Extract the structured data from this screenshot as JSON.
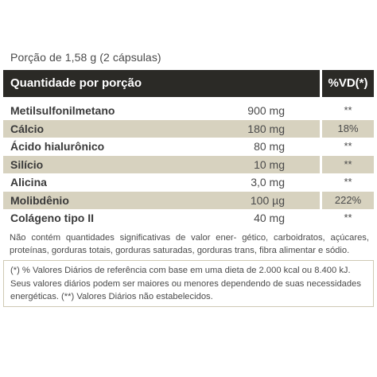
{
  "portion": "Porção de 1,58 g (2 cápsulas)",
  "header": {
    "left": "Quantidade por porção",
    "right": "%VD(*)"
  },
  "rows": [
    {
      "name": "Metilsulfonilmetano",
      "amount": "900 mg",
      "vd": "**",
      "shaded": false
    },
    {
      "name": "Cálcio",
      "amount": "180 mg",
      "vd": "18%",
      "shaded": true
    },
    {
      "name": "Ácido hialurônico",
      "amount": "80 mg",
      "vd": "**",
      "shaded": false
    },
    {
      "name": "Silício",
      "amount": "10 mg",
      "vd": "**",
      "shaded": true
    },
    {
      "name": "Alicina",
      "amount": "3,0 mg",
      "vd": "**",
      "shaded": false
    },
    {
      "name": "Molibdênio",
      "amount": "100 µg",
      "vd": "222%",
      "shaded": true
    },
    {
      "name": "Colágeno tipo II",
      "amount": "40 mg",
      "vd": "**",
      "shaded": false
    }
  ],
  "notes": {
    "not_significant": "Não contém quantidades significativas de valor ener- gético, carboidratos, açúcares, proteínas, gorduras totais, gorduras saturadas, gorduras trans, fibra alimentar e sódio.",
    "reference": "(*) % Valores Diários de referência com base em uma dieta de 2.000 kcal ou 8.400 kJ. Seus valores diários podem ser maiores ou menores dependendo de suas necessidades energéticas. (**) Valores Diários não estabelecidos."
  }
}
